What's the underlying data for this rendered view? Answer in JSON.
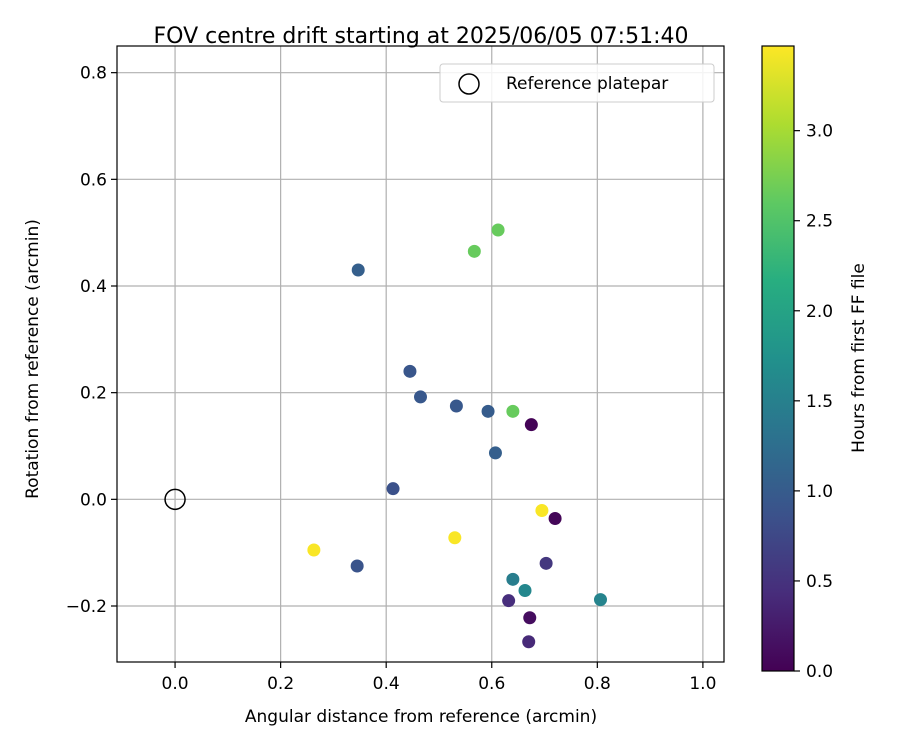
{
  "chart_data": {
    "type": "scatter",
    "title": "FOV centre drift starting at 2025/06/05 07:51:40",
    "xlabel": "Angular distance from reference (arcmin)",
    "ylabel": "Rotation from reference (arcmin)",
    "xlim": [
      -0.11,
      1.04
    ],
    "ylim": [
      -0.305,
      0.85
    ],
    "xticks": [
      0.0,
      0.2,
      0.4,
      0.6,
      0.8,
      1.0
    ],
    "yticks": [
      -0.2,
      0.0,
      0.2,
      0.4,
      0.6,
      0.8
    ],
    "grid": true,
    "legend": {
      "placement": "top-right",
      "entries": [
        {
          "label": "Reference platepar",
          "marker": "open-circle"
        }
      ]
    },
    "reference_point": {
      "x": 0.0,
      "y": 0.0
    },
    "colorbar": {
      "label": "Hours from first FF file",
      "colormap": "viridis",
      "range": [
        0.0,
        3.47
      ],
      "ticks": [
        0.0,
        0.5,
        1.0,
        1.5,
        2.0,
        2.5,
        3.0
      ]
    },
    "points": [
      {
        "x": 0.675,
        "y": 0.14,
        "c": 0.02
      },
      {
        "x": 0.72,
        "y": -0.036,
        "c": 0.05
      },
      {
        "x": 0.672,
        "y": -0.222,
        "c": 0.12
      },
      {
        "x": 0.67,
        "y": -0.267,
        "c": 0.4
      },
      {
        "x": 0.632,
        "y": -0.19,
        "c": 0.45
      },
      {
        "x": 0.703,
        "y": -0.12,
        "c": 0.55
      },
      {
        "x": 0.413,
        "y": 0.02,
        "c": 0.85
      },
      {
        "x": 0.345,
        "y": -0.125,
        "c": 0.9
      },
      {
        "x": 0.465,
        "y": 0.192,
        "c": 0.95
      },
      {
        "x": 0.445,
        "y": 0.24,
        "c": 0.92
      },
      {
        "x": 0.533,
        "y": 0.175,
        "c": 0.95
      },
      {
        "x": 0.593,
        "y": 0.165,
        "c": 1.0
      },
      {
        "x": 0.347,
        "y": 0.43,
        "c": 1.05
      },
      {
        "x": 0.607,
        "y": 0.087,
        "c": 1.05
      },
      {
        "x": 0.64,
        "y": -0.15,
        "c": 1.45
      },
      {
        "x": 0.663,
        "y": -0.171,
        "c": 1.6
      },
      {
        "x": 0.806,
        "y": -0.188,
        "c": 1.55
      },
      {
        "x": 0.567,
        "y": 0.465,
        "c": 2.65
      },
      {
        "x": 0.612,
        "y": 0.505,
        "c": 2.65
      },
      {
        "x": 0.64,
        "y": 0.165,
        "c": 2.65
      },
      {
        "x": 0.263,
        "y": -0.095,
        "c": 3.45
      },
      {
        "x": 0.53,
        "y": -0.072,
        "c": 3.45
      },
      {
        "x": 0.695,
        "y": -0.021,
        "c": 3.45
      }
    ]
  }
}
